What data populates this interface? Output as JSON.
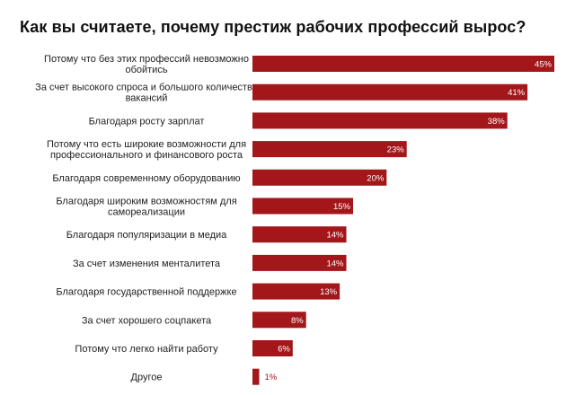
{
  "title": "Как вы считаете, почему престиж рабочих профессий вырос?",
  "chart_data": {
    "type": "bar",
    "orientation": "horizontal",
    "title": "Как вы считаете, почему престиж рабочих профессий вырос?",
    "bar_color": "#a3161a",
    "categories": [
      [
        "Потому что без этих профессий невозможно",
        "обойтись"
      ],
      [
        "За счет высокого спроса и большого количества",
        "вакансий"
      ],
      [
        "Благодаря росту зарплат"
      ],
      [
        "Потому что есть широкие возможности для",
        "профессионального и финансового роста"
      ],
      [
        "Благодаря современному оборудованию"
      ],
      [
        "Благодаря широким возможностям для",
        "самореализации"
      ],
      [
        "Благодаря популяризации в медиа"
      ],
      [
        "За счет изменения менталитета"
      ],
      [
        "Благодаря государственной поддержке"
      ],
      [
        "За счет хорошего соцпакета"
      ],
      [
        "Потому что легко найти работу"
      ],
      [
        "Другое"
      ]
    ],
    "values": [
      45,
      41,
      38,
      23,
      20,
      15,
      14,
      14,
      13,
      8,
      6,
      1
    ],
    "value_labels": [
      "45%",
      "41%",
      "38%",
      "23%",
      "20%",
      "15%",
      "14%",
      "14%",
      "13%",
      "8%",
      "6%",
      "1%"
    ],
    "xlim": [
      0,
      45
    ],
    "grid": false,
    "legend": "none"
  }
}
